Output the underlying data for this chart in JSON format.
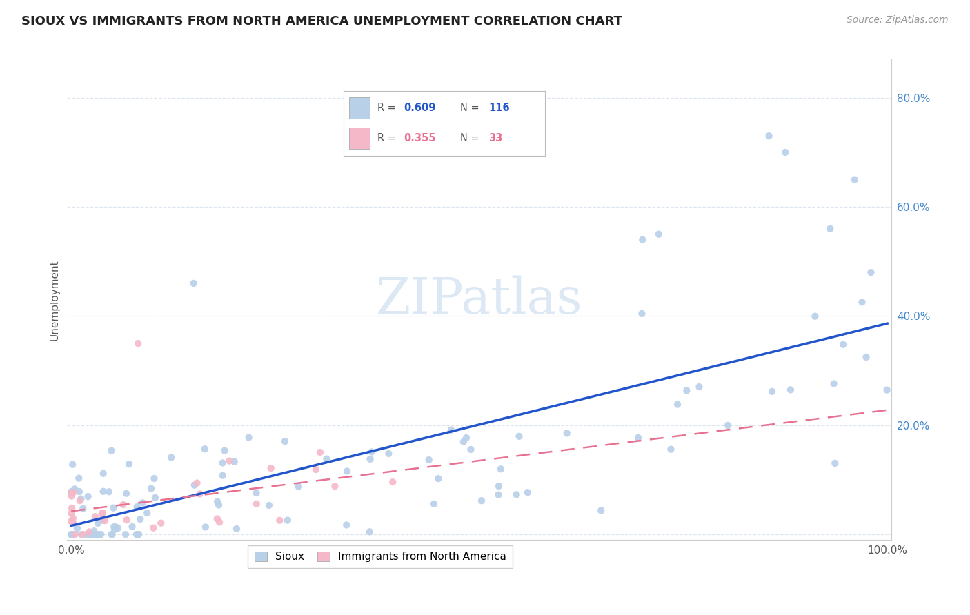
{
  "title": "SIOUX VS IMMIGRANTS FROM NORTH AMERICA UNEMPLOYMENT CORRELATION CHART",
  "source": "Source: ZipAtlas.com",
  "ylabel": "Unemployment",
  "sioux_R": 0.609,
  "sioux_N": 116,
  "immig_R": 0.355,
  "immig_N": 33,
  "sioux_color": "#b8d0e8",
  "immig_color": "#f5b8c8",
  "sioux_line_color": "#2255cc",
  "immig_line_color": "#e87090",
  "watermark_color": "#dde8f5",
  "background_color": "#ffffff",
  "grid_color": "#dde5ee",
  "title_color": "#222222",
  "source_color": "#999999",
  "tick_label_color": "#4488cc",
  "ylabel_color": "#555555",
  "legend_text_color_sioux": "#2255cc",
  "legend_text_color_immig": "#e87090"
}
